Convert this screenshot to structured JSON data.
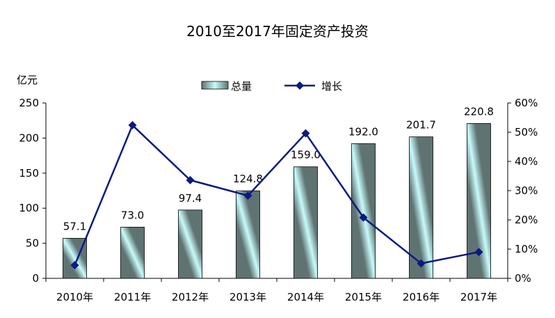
{
  "chart_data": {
    "type": "bar+line",
    "title": "2010至2017年固定资产投资",
    "left_unit": "亿元",
    "categories": [
      "2010年",
      "2011年",
      "2012年",
      "2013年",
      "2014年",
      "2015年",
      "2016年",
      "2017年"
    ],
    "series": [
      {
        "name": "总量",
        "type": "bar",
        "axis": "left",
        "values": [
          57.1,
          73.0,
          97.4,
          124.8,
          159.0,
          192.0,
          201.7,
          220.8
        ],
        "labels": [
          "57.1",
          "73.0",
          "97.4",
          "124.8",
          "159.0",
          "192.0",
          "201.7",
          "220.8"
        ]
      },
      {
        "name": "增长",
        "type": "line",
        "axis": "right",
        "values": [
          4.5,
          52.4,
          33.6,
          28.3,
          49.6,
          20.8,
          5.1,
          9.0
        ]
      }
    ],
    "left_axis": {
      "min": 0,
      "max": 250,
      "ticks": [
        "0",
        "50",
        "100",
        "150",
        "200",
        "250"
      ]
    },
    "right_axis": {
      "min": 0,
      "max": 60,
      "ticks": [
        "0%",
        "10%",
        "20%",
        "30%",
        "40%",
        "50%",
        "60%"
      ]
    },
    "legend_position": "top-center",
    "grid": false,
    "colors": {
      "bar_dark": "#5f7472",
      "bar_light": "#c8fbfb",
      "line": "#0a1a80",
      "axis": "#000000"
    }
  }
}
